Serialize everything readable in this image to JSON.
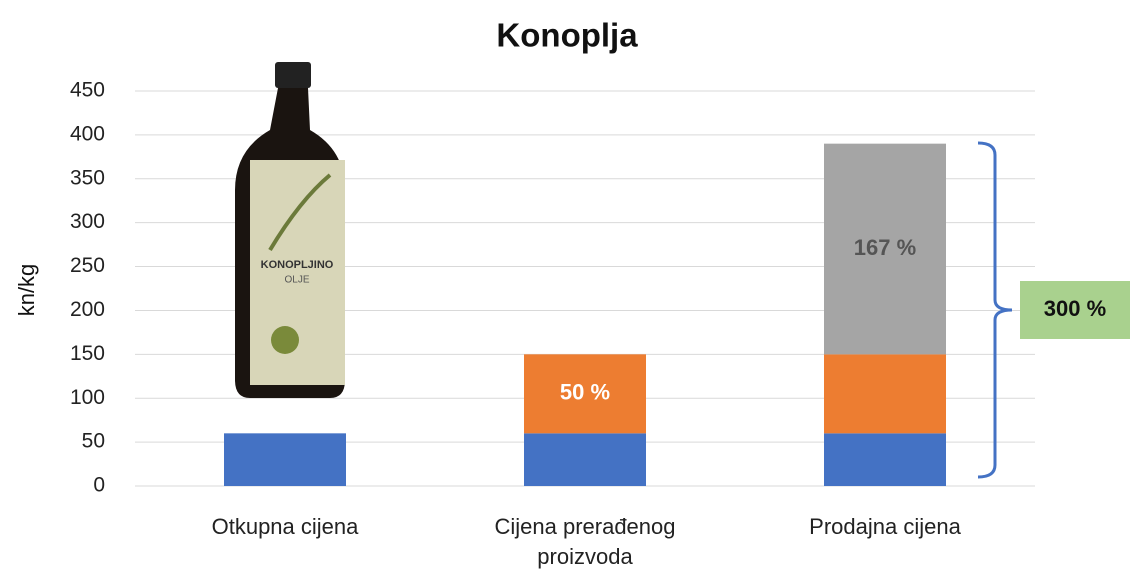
{
  "chart_data": {
    "type": "bar",
    "stacked": true,
    "title": "Konoplja",
    "y_label": "kn/kg",
    "categories": [
      "Otkupna cijena",
      "Cijena prerađenog proizvoda",
      "Prodajna cijena"
    ],
    "series": [
      {
        "color": "#4472c4",
        "values": [
          60,
          60,
          60
        ]
      },
      {
        "color": "#ed7d31",
        "values": [
          null,
          90,
          90
        ]
      },
      {
        "color": "#a5a5a5",
        "values": [
          null,
          null,
          240
        ]
      }
    ],
    "ylim": [
      0,
      450
    ],
    "yticks": [
      0,
      50,
      100,
      150,
      200,
      250,
      300,
      350,
      400,
      450
    ],
    "grid": true,
    "annotations": [
      "50 %",
      "167 %",
      "300 %"
    ]
  }
}
